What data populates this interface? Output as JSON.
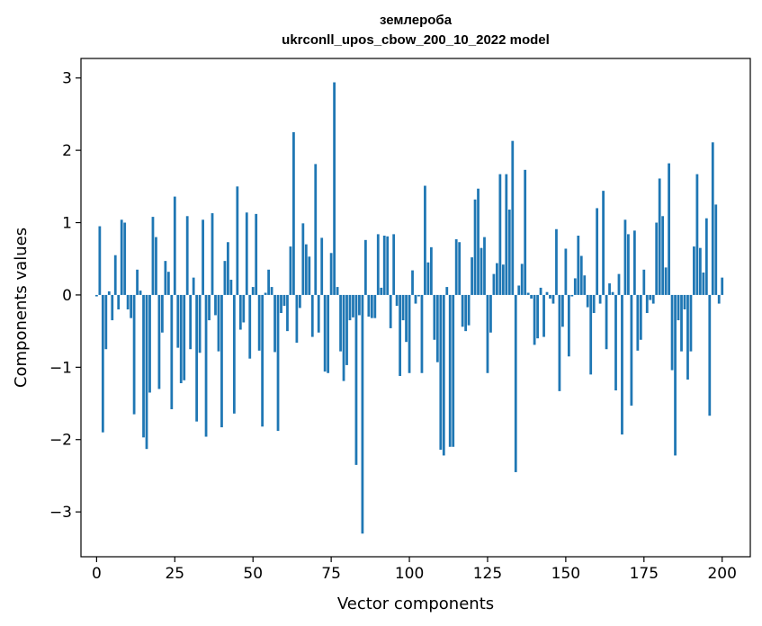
{
  "chart_data": {
    "type": "bar",
    "title": "землероба",
    "subtitle": "ukrconll_upos_cbow_200_10_2022 model",
    "xlabel": "Vector components",
    "ylabel": "Components values",
    "xlim": [
      -5,
      209
    ],
    "ylim": [
      -3.62,
      3.27
    ],
    "xticks": [
      0,
      25,
      50,
      75,
      100,
      125,
      150,
      175,
      200
    ],
    "yticks": [
      -3,
      -2,
      -1,
      0,
      1,
      2,
      3
    ],
    "xtick_labels": [
      "0",
      "25",
      "50",
      "75",
      "100",
      "125",
      "150",
      "175",
      "200"
    ],
    "ytick_labels": [
      "−3",
      "−2",
      "−1",
      "0",
      "1",
      "2",
      "3"
    ],
    "bar_color": "#1f77b4",
    "grid": false,
    "legend": "none",
    "values": [
      -0.02,
      0.95,
      -1.9,
      -0.75,
      0.05,
      -0.35,
      0.55,
      -0.2,
      1.04,
      1.0,
      -0.2,
      -0.32,
      -1.65,
      0.35,
      0.06,
      -1.97,
      -2.13,
      -1.35,
      1.08,
      0.8,
      -1.3,
      -0.52,
      0.47,
      0.32,
      -1.58,
      1.36,
      -0.73,
      -1.22,
      -1.18,
      1.09,
      -0.75,
      0.24,
      -1.75,
      -0.8,
      1.04,
      -1.96,
      -0.35,
      1.13,
      -0.28,
      -0.78,
      -1.83,
      0.47,
      0.73,
      0.21,
      -1.64,
      1.5,
      -0.48,
      -0.38,
      1.14,
      -0.88,
      0.11,
      1.12,
      -0.77,
      -1.82,
      0.03,
      0.35,
      0.11,
      -0.79,
      -1.88,
      -0.25,
      -0.15,
      -0.5,
      0.67,
      2.25,
      -0.66,
      -0.18,
      0.99,
      0.7,
      0.53,
      -0.58,
      1.81,
      -0.52,
      0.79,
      -1.06,
      -1.08,
      0.58,
      2.94,
      0.11,
      -0.78,
      -1.19,
      -0.97,
      -0.35,
      -0.31,
      -2.35,
      -0.28,
      -3.3,
      0.76,
      -0.3,
      -0.32,
      -0.32,
      0.84,
      0.1,
      0.82,
      0.81,
      -0.46,
      0.84,
      -0.15,
      -1.12,
      -0.35,
      -0.65,
      -1.08,
      0.34,
      -0.12,
      -0.02,
      -1.08,
      1.51,
      0.45,
      0.66,
      -0.62,
      -0.93,
      -2.14,
      -2.22,
      0.11,
      -2.1,
      -2.1,
      0.77,
      0.73,
      -0.44,
      -0.5,
      -0.42,
      0.52,
      1.32,
      1.47,
      0.65,
      0.8,
      -1.08,
      -0.52,
      0.29,
      0.44,
      1.67,
      0.42,
      1.67,
      1.18,
      2.13,
      -2.45,
      0.13,
      0.43,
      1.73,
      0.03,
      -0.05,
      -0.69,
      -0.6,
      0.1,
      -0.58,
      0.04,
      -0.05,
      -0.12,
      0.91,
      -1.33,
      -0.44,
      0.64,
      -0.85,
      -0.02,
      0.23,
      0.82,
      0.54,
      0.27,
      -0.17,
      -1.1,
      -0.25,
      1.2,
      -0.12,
      1.44,
      -0.75,
      0.16,
      0.04,
      -1.32,
      0.29,
      -1.93,
      1.04,
      0.84,
      -1.53,
      0.89,
      -0.77,
      -0.62,
      0.35,
      -0.25,
      -0.07,
      -0.12,
      1.0,
      1.61,
      1.09,
      0.38,
      1.82,
      -1.04,
      -2.22,
      -0.35,
      -0.78,
      -0.2,
      -1.17,
      -0.78,
      0.67,
      1.67,
      0.65,
      0.31,
      1.06,
      -1.67,
      2.11,
      1.25,
      -0.12,
      0.24
    ]
  }
}
